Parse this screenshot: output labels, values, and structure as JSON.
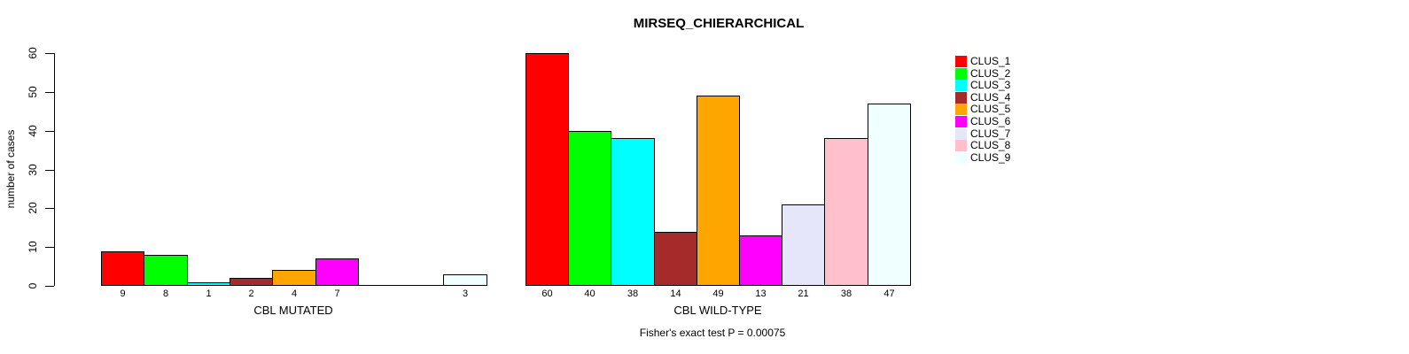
{
  "title": "MIRSEQ_CHIERARCHICAL",
  "chart_data": {
    "type": "bar",
    "title": "MIRSEQ_CHIERARCHICAL",
    "ylabel": "number of cases",
    "ylim": [
      0,
      60
    ],
    "yticks": [
      0,
      10,
      20,
      30,
      40,
      50,
      60
    ],
    "grid": false,
    "legend_position": "right",
    "clusters": [
      {
        "name": "CLUS_1",
        "color": "#FF0000"
      },
      {
        "name": "CLUS_2",
        "color": "#00FF00"
      },
      {
        "name": "CLUS_3",
        "color": "#00FFFF"
      },
      {
        "name": "CLUS_4",
        "color": "#A52A2A"
      },
      {
        "name": "CLUS_5",
        "color": "#FFA500"
      },
      {
        "name": "CLUS_6",
        "color": "#FF00FF"
      },
      {
        "name": "CLUS_7",
        "color": "#E6E6FA"
      },
      {
        "name": "CLUS_8",
        "color": "#FFC0CB"
      },
      {
        "name": "CLUS_9",
        "color": "#F0FFFF"
      }
    ],
    "groups": [
      {
        "label": "CBL MUTATED",
        "values": [
          9,
          8,
          1,
          2,
          4,
          7,
          0,
          0,
          3
        ],
        "bar_labels": [
          "9",
          "8",
          "1",
          "2",
          "4",
          "7",
          "",
          "",
          "3"
        ]
      },
      {
        "label": "CBL WILD-TYPE",
        "values": [
          60,
          40,
          38,
          14,
          49,
          13,
          21,
          38,
          47
        ],
        "bar_labels": [
          "60",
          "40",
          "38",
          "14",
          "49",
          "13",
          "21",
          "38",
          "47"
        ]
      }
    ],
    "annotation": "Fisher's exact test P = 0.00075"
  }
}
